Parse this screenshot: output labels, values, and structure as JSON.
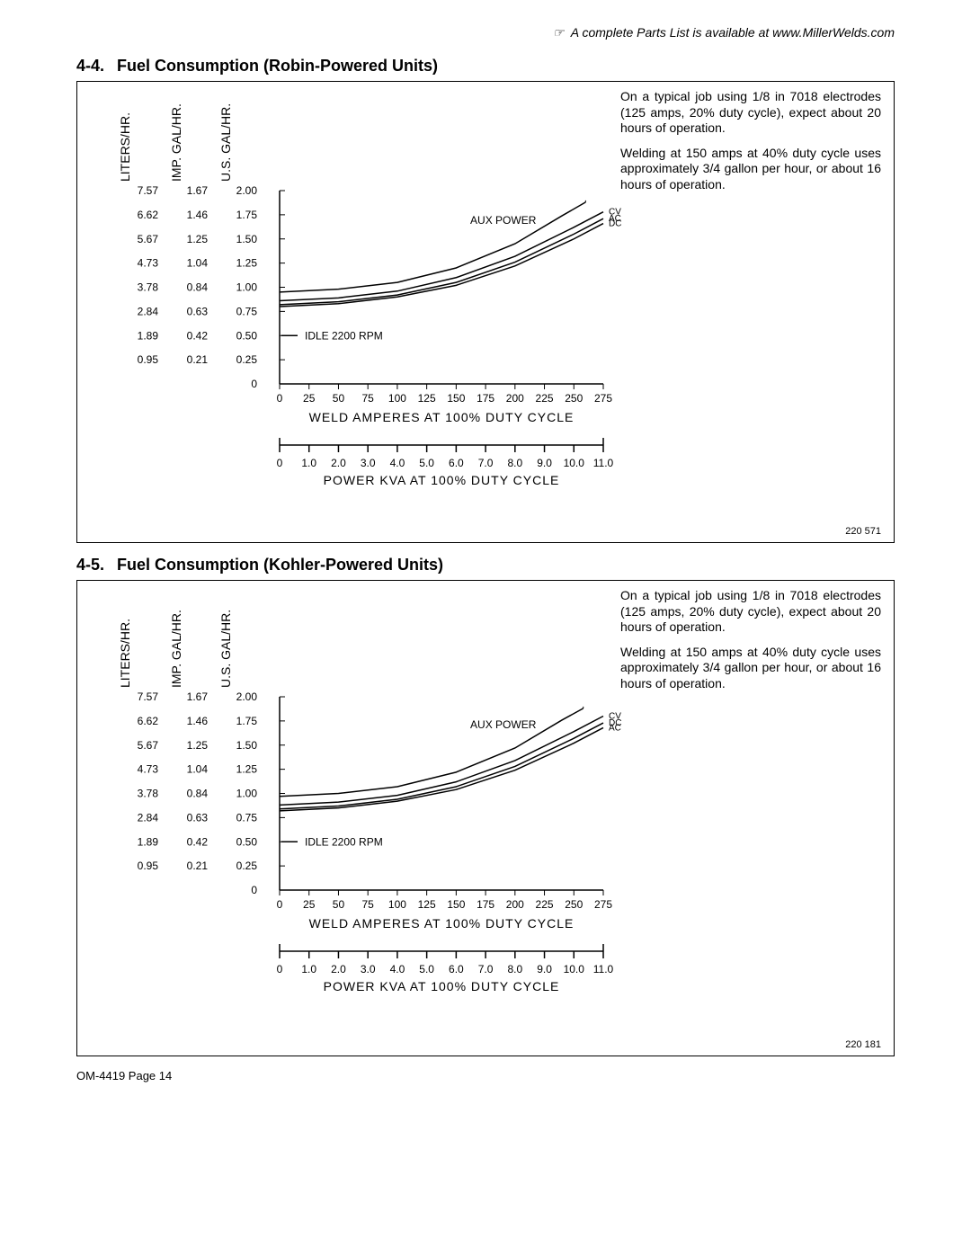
{
  "top_note": "A complete Parts List is available at www.MillerWelds.com",
  "footer": "OM-4419 Page 14",
  "sections": [
    {
      "num": "4-4.",
      "title": "Fuel Consumption (Robin-Powered Units)",
      "fig_ref": "220 571",
      "side_text": {
        "p1": "On a typical job using 1/8 in 7018 electrodes (125 amps, 20% duty cycle), expect about 20 hours of operation.",
        "p2": "Welding at 150 amps at 40% duty cycle uses approximately 3/4 gallon per hour, or about 16 hours of operation."
      },
      "chart": {
        "y_labels_liters": [
          "7.57",
          "6.62",
          "5.67",
          "4.73",
          "3.78",
          "2.84",
          "1.89",
          "0.95"
        ],
        "y_labels_imp": [
          "1.67",
          "1.46",
          "1.25",
          "1.04",
          "0.84",
          "0.63",
          "0.42",
          "0.21"
        ],
        "y_labels_us": [
          "2.00",
          "1.75",
          "1.50",
          "1.25",
          "1.00",
          "0.75",
          "0.50",
          "0.25",
          "0"
        ],
        "y_header_liters": "LITERS/HR.",
        "y_header_imp": "IMP. GAL/HR.",
        "y_header_us": "U.S. GAL/HR.",
        "x1_ticks": [
          "0",
          "25",
          "50",
          "75",
          "100",
          "125",
          "150",
          "175",
          "200",
          "225",
          "250",
          "275"
        ],
        "x1_label": "WELD AMPERES AT 100% DUTY CYCLE",
        "x2_ticks": [
          "0",
          "1.0",
          "2.0",
          "3.0",
          "4.0",
          "5.0",
          "6.0",
          "7.0",
          "8.0",
          "9.0",
          "10.0",
          "11.0"
        ],
        "x2_label": "POWER KVA AT 100% DUTY CYCLE",
        "idle_label": "IDLE 2200 RPM",
        "aux_power_label": "AUX POWER",
        "line_labels": [
          "CV",
          "AC",
          "DC"
        ],
        "weld_word": "WELD",
        "plot": {
          "x_domain": [
            0,
            275
          ],
          "y_domain_us": [
            0,
            2.0
          ],
          "series": {
            "aux_power": [
              [
                0,
                0.95
              ],
              [
                50,
                0.98
              ],
              [
                100,
                1.05
              ],
              [
                150,
                1.2
              ],
              [
                200,
                1.45
              ],
              [
                240,
                1.74
              ],
              [
                260,
                1.88
              ]
            ],
            "cv": [
              [
                0,
                0.86
              ],
              [
                50,
                0.89
              ],
              [
                100,
                0.96
              ],
              [
                150,
                1.1
              ],
              [
                200,
                1.32
              ],
              [
                250,
                1.62
              ],
              [
                275,
                1.78
              ]
            ],
            "ac": [
              [
                0,
                0.82
              ],
              [
                50,
                0.85
              ],
              [
                100,
                0.92
              ],
              [
                150,
                1.05
              ],
              [
                200,
                1.26
              ],
              [
                250,
                1.55
              ],
              [
                275,
                1.71
              ]
            ],
            "dc": [
              [
                0,
                0.8
              ],
              [
                50,
                0.83
              ],
              [
                100,
                0.9
              ],
              [
                150,
                1.02
              ],
              [
                200,
                1.22
              ],
              [
                250,
                1.5
              ],
              [
                275,
                1.66
              ]
            ]
          },
          "idle_y": 0.5,
          "stroke": "#000000",
          "stroke_width": 1.5,
          "axis_color": "#000000"
        }
      }
    },
    {
      "num": "4-5.",
      "title": "Fuel Consumption (Kohler-Powered Units)",
      "fig_ref": "220 181",
      "side_text": {
        "p1": "On a typical job using 1/8 in 7018 electrodes (125 amps, 20% duty cycle), expect about 20 hours of operation.",
        "p2": "Welding at 150 amps at 40% duty cycle uses approximately 3/4 gallon per hour, or about 16 hours of operation."
      },
      "chart": {
        "y_labels_liters": [
          "7.57",
          "6.62",
          "5.67",
          "4.73",
          "3.78",
          "2.84",
          "1.89",
          "0.95"
        ],
        "y_labels_imp": [
          "1.67",
          "1.46",
          "1.25",
          "1.04",
          "0.84",
          "0.63",
          "0.42",
          "0.21"
        ],
        "y_labels_us": [
          "2.00",
          "1.75",
          "1.50",
          "1.25",
          "1.00",
          "0.75",
          "0.50",
          "0.25",
          "0"
        ],
        "y_header_liters": "LITERS/HR.",
        "y_header_imp": "IMP. GAL/HR.",
        "y_header_us": "U.S. GAL/HR.",
        "x1_ticks": [
          "0",
          "25",
          "50",
          "75",
          "100",
          "125",
          "150",
          "175",
          "200",
          "225",
          "250",
          "275"
        ],
        "x1_label": "WELD AMPERES AT 100% DUTY CYCLE",
        "x2_ticks": [
          "0",
          "1.0",
          "2.0",
          "3.0",
          "4.0",
          "5.0",
          "6.0",
          "7.0",
          "8.0",
          "9.0",
          "10.0",
          "11.0"
        ],
        "x2_label": "POWER KVA AT 100% DUTY CYCLE",
        "idle_label": "IDLE 2200 RPM",
        "aux_power_label": "AUX POWER",
        "line_labels": [
          "CV",
          "DC",
          "AC"
        ],
        "weld_word": "WELD",
        "plot": {
          "x_domain": [
            0,
            275
          ],
          "y_domain_us": [
            0,
            2.0
          ],
          "series": {
            "aux_power": [
              [
                0,
                0.97
              ],
              [
                50,
                1.0
              ],
              [
                100,
                1.07
              ],
              [
                150,
                1.22
              ],
              [
                200,
                1.47
              ],
              [
                240,
                1.76
              ],
              [
                258,
                1.88
              ]
            ],
            "cv": [
              [
                0,
                0.88
              ],
              [
                50,
                0.91
              ],
              [
                100,
                0.98
              ],
              [
                150,
                1.12
              ],
              [
                200,
                1.34
              ],
              [
                250,
                1.64
              ],
              [
                275,
                1.8
              ]
            ],
            "dc": [
              [
                0,
                0.84
              ],
              [
                50,
                0.87
              ],
              [
                100,
                0.94
              ],
              [
                150,
                1.07
              ],
              [
                200,
                1.28
              ],
              [
                250,
                1.57
              ],
              [
                275,
                1.73
              ]
            ],
            "ac": [
              [
                0,
                0.82
              ],
              [
                50,
                0.85
              ],
              [
                100,
                0.92
              ],
              [
                150,
                1.04
              ],
              [
                200,
                1.24
              ],
              [
                250,
                1.52
              ],
              [
                275,
                1.68
              ]
            ]
          },
          "idle_y": 0.5,
          "stroke": "#000000",
          "stroke_width": 1.5,
          "axis_color": "#000000"
        }
      }
    }
  ]
}
